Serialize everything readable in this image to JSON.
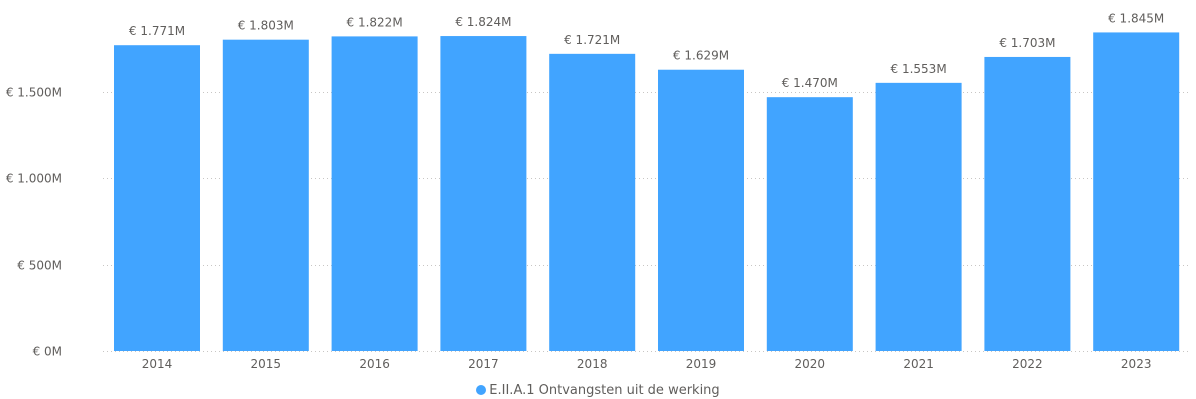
{
  "chart_data": {
    "type": "bar",
    "categories": [
      "2014",
      "2015",
      "2016",
      "2017",
      "2018",
      "2019",
      "2020",
      "2021",
      "2022",
      "2023"
    ],
    "series": [
      {
        "name": "E.II.A.1 Ontvangsten uit de werking",
        "values": [
          1771,
          1803,
          1822,
          1824,
          1721,
          1629,
          1470,
          1553,
          1703,
          1845
        ],
        "labels": [
          "€ 1.771M",
          "€ 1.803M",
          "€ 1.822M",
          "€ 1.824M",
          "€ 1.721M",
          "€ 1.629M",
          "€ 1.470M",
          "€ 1.553M",
          "€ 1.703M",
          "€ 1.845M"
        ],
        "color": "#41a4ff"
      }
    ],
    "ylim": [
      0,
      1900
    ],
    "yticks": [
      0,
      500,
      1000,
      1500
    ],
    "ytick_labels": [
      "€ 0M",
      "€ 500M",
      "€ 1.000M",
      "€ 1.500M"
    ],
    "grid": true,
    "legend_position": "bottom",
    "title": "",
    "xlabel": "",
    "ylabel": ""
  }
}
